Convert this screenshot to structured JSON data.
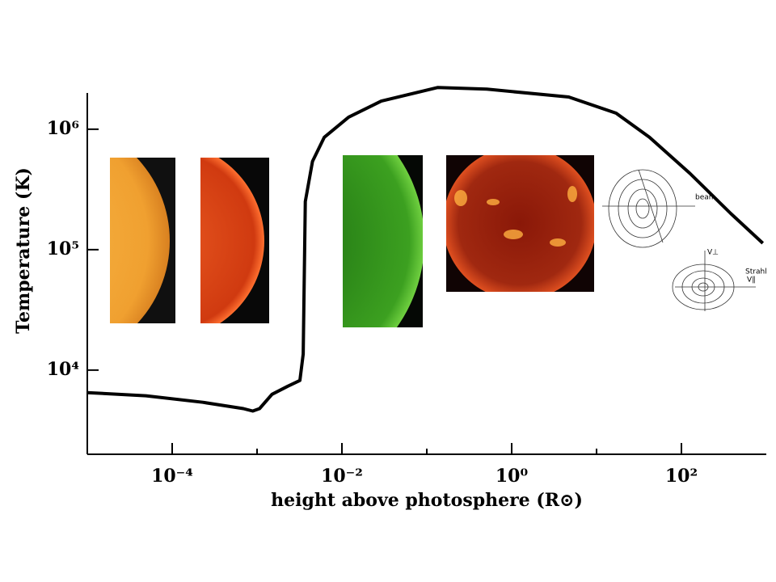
{
  "chart_data": {
    "type": "line",
    "xlabel": "height above photosphere  (R⊙)",
    "ylabel": "Temperature (K)",
    "xlog": true,
    "ylog": true,
    "xlim": [
      1e-05,
      1000
    ],
    "ylim": [
      2000,
      2000000
    ],
    "xticks": [
      {
        "value": 0.0001,
        "label": "10⁻⁴"
      },
      {
        "value": 0.01,
        "label": "10⁻²"
      },
      {
        "value": 1,
        "label": "10⁰"
      },
      {
        "value": 100,
        "label": "10²"
      }
    ],
    "xminorticks": [
      0.001,
      0.1,
      10
    ],
    "yticks": [
      {
        "value": 10000,
        "label": "10⁴"
      },
      {
        "value": 100000,
        "label": "10⁵"
      },
      {
        "value": 1000000,
        "label": "10⁶"
      }
    ],
    "color": "#000000",
    "x": [
      1e-05,
      4.9e-05,
      0.00023,
      0.00069,
      0.00089,
      0.00107,
      0.0015,
      0.0023,
      0.0032,
      0.0035,
      0.0037,
      0.0045,
      0.0062,
      0.012,
      0.029,
      0.135,
      0.51,
      4.7,
      17,
      42,
      126,
      380,
      910
    ],
    "values": [
      6500,
      6120,
      5400,
      4790,
      4570,
      4790,
      6300,
      7350,
      8200,
      13600,
      251000,
      541000,
      858000,
      1260000,
      1710000,
      2220000,
      2150000,
      1850000,
      1360000,
      858000,
      430000,
      200000,
      113000
    ],
    "annotations": [
      "beam",
      "Strahl",
      "V⊥",
      "V∥"
    ]
  }
}
